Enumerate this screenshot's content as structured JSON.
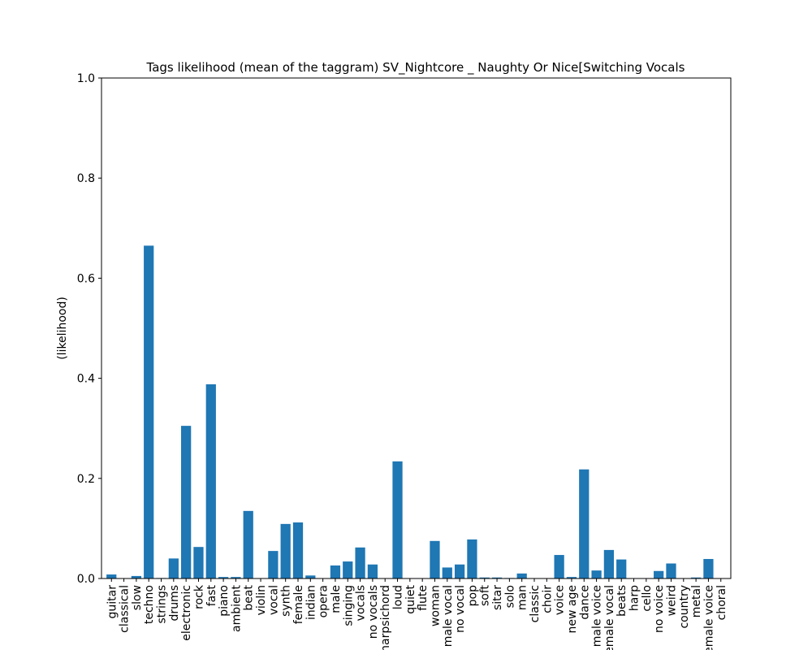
{
  "chart_data": {
    "type": "bar",
    "title": "Tags likelihood (mean of the taggram) SV_Nightcore _ Naughty Or Nice[Switching Vocals",
    "xlabel": "",
    "ylabel": "(likelihood)",
    "ylim": [
      0,
      1.0
    ],
    "yticks": [
      "0.0",
      "0.2",
      "0.4",
      "0.6",
      "0.8",
      "1.0"
    ],
    "bar_color": "#1f77b4",
    "grid": false,
    "categories": [
      "guitar",
      "classical",
      "slow",
      "techno",
      "strings",
      "drums",
      "electronic",
      "rock",
      "fast",
      "piano",
      "ambient",
      "beat",
      "violin",
      "vocal",
      "synth",
      "female",
      "indian",
      "opera",
      "male",
      "singing",
      "vocals",
      "no vocals",
      "harpsichord",
      "loud",
      "quiet",
      "flute",
      "woman",
      "male vocal",
      "no vocal",
      "pop",
      "soft",
      "sitar",
      "solo",
      "man",
      "classic",
      "choir",
      "voice",
      "new age",
      "dance",
      "male voice",
      "female vocal",
      "beats",
      "harp",
      "cello",
      "no voice",
      "weird",
      "country",
      "metal",
      "female voice",
      "choral"
    ],
    "values": [
      0.008,
      0.0,
      0.005,
      0.665,
      0.001,
      0.04,
      0.305,
      0.063,
      0.388,
      0.003,
      0.003,
      0.135,
      0.0,
      0.055,
      0.109,
      0.112,
      0.006,
      0.0,
      0.026,
      0.034,
      0.062,
      0.028,
      0.0,
      0.234,
      0.0,
      0.0,
      0.075,
      0.022,
      0.028,
      0.078,
      0.002,
      0.002,
      0.001,
      0.01,
      0.0,
      0.0,
      0.047,
      0.003,
      0.218,
      0.016,
      0.057,
      0.038,
      0.0,
      0.0,
      0.015,
      0.03,
      0.0,
      0.002,
      0.039,
      0.0
    ]
  }
}
